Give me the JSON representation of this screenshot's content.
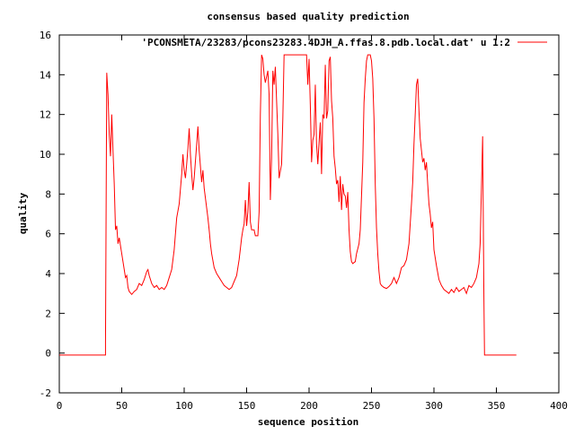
{
  "chart_data": {
    "type": "line",
    "title": "consensus based quality prediction",
    "xlabel": "sequence position",
    "ylabel": "quality",
    "xlim": [
      0,
      400
    ],
    "ylim": [
      -2,
      16
    ],
    "xticks": [
      0,
      50,
      100,
      150,
      200,
      250,
      300,
      350,
      400
    ],
    "yticks": [
      -2,
      0,
      2,
      4,
      6,
      8,
      10,
      12,
      14,
      16
    ],
    "grid": false,
    "legend_position": "top-right",
    "series": [
      {
        "name": "'PCONSMETA/23283/pcons23283.4DJH_A.ffas.8.pdb.local.dat' u 1:2",
        "color": "#ff0000",
        "points": [
          [
            0,
            -0.1
          ],
          [
            37,
            -0.1
          ],
          [
            37,
            0.5
          ],
          [
            38,
            14.1
          ],
          [
            39,
            13
          ],
          [
            40,
            11
          ],
          [
            41,
            9.9
          ],
          [
            42,
            12
          ],
          [
            43,
            10.2
          ],
          [
            44,
            8.5
          ],
          [
            45,
            6.2
          ],
          [
            46,
            6.4
          ],
          [
            47,
            5.5
          ],
          [
            48,
            5.8
          ],
          [
            50,
            5
          ],
          [
            52,
            4.2
          ],
          [
            53,
            3.8
          ],
          [
            54,
            3.9
          ],
          [
            55,
            3.3
          ],
          [
            56,
            3.1
          ],
          [
            58,
            2.95
          ],
          [
            60,
            3.1
          ],
          [
            62,
            3.2
          ],
          [
            64,
            3.5
          ],
          [
            66,
            3.4
          ],
          [
            68,
            3.7
          ],
          [
            70,
            4.1
          ],
          [
            71,
            4.2
          ],
          [
            72,
            3.9
          ],
          [
            74,
            3.5
          ],
          [
            76,
            3.3
          ],
          [
            78,
            3.4
          ],
          [
            80,
            3.2
          ],
          [
            82,
            3.3
          ],
          [
            84,
            3.2
          ],
          [
            86,
            3.4
          ],
          [
            88,
            3.8
          ],
          [
            90,
            4.2
          ],
          [
            92,
            5.2
          ],
          [
            94,
            6.8
          ],
          [
            96,
            7.5
          ],
          [
            98,
            9
          ],
          [
            99,
            10
          ],
          [
            100,
            9.2
          ],
          [
            101,
            8.8
          ],
          [
            102,
            9.5
          ],
          [
            103,
            10.3
          ],
          [
            104,
            11.3
          ],
          [
            105,
            10
          ],
          [
            106,
            9
          ],
          [
            107,
            8.2
          ],
          [
            108,
            8.8
          ],
          [
            110,
            10.5
          ],
          [
            111,
            11.4
          ],
          [
            112,
            10.2
          ],
          [
            113,
            9.4
          ],
          [
            114,
            8.6
          ],
          [
            115,
            9.2
          ],
          [
            116,
            8.3
          ],
          [
            118,
            7.3
          ],
          [
            119,
            6.8
          ],
          [
            120,
            6.2
          ],
          [
            121,
            5.5
          ],
          [
            122,
            5
          ],
          [
            124,
            4.3
          ],
          [
            126,
            4
          ],
          [
            128,
            3.8
          ],
          [
            130,
            3.6
          ],
          [
            132,
            3.4
          ],
          [
            134,
            3.3
          ],
          [
            136,
            3.2
          ],
          [
            138,
            3.3
          ],
          [
            140,
            3.6
          ],
          [
            142,
            3.9
          ],
          [
            144,
            4.7
          ],
          [
            146,
            5.8
          ],
          [
            147,
            6.2
          ],
          [
            148,
            6.5
          ],
          [
            149,
            7.7
          ],
          [
            150,
            6.4
          ],
          [
            151,
            7.1
          ],
          [
            152,
            8.6
          ],
          [
            153,
            6.6
          ],
          [
            154,
            6.2
          ],
          [
            156,
            6.2
          ],
          [
            157,
            5.9
          ],
          [
            159,
            5.9
          ],
          [
            160,
            7.1
          ],
          [
            161,
            12
          ],
          [
            162,
            15
          ],
          [
            163,
            14.8
          ],
          [
            164,
            14
          ],
          [
            165,
            13.6
          ],
          [
            167,
            14.2
          ],
          [
            168,
            13
          ],
          [
            169,
            7.7
          ],
          [
            170,
            9.8
          ],
          [
            171,
            14.2
          ],
          [
            172,
            13.5
          ],
          [
            173,
            14.4
          ],
          [
            175,
            11
          ],
          [
            176,
            8.8
          ],
          [
            178,
            9.5
          ],
          [
            179,
            11.8
          ],
          [
            180,
            15
          ],
          [
            192,
            15
          ],
          [
            198,
            15
          ],
          [
            199,
            13.5
          ],
          [
            200,
            14.8
          ],
          [
            201,
            12.5
          ],
          [
            202,
            9.6
          ],
          [
            203,
            10.7
          ],
          [
            204,
            11
          ],
          [
            205,
            13.5
          ],
          [
            206,
            10.5
          ],
          [
            207,
            9.5
          ],
          [
            208,
            10.6
          ],
          [
            209,
            11.6
          ],
          [
            210,
            9
          ],
          [
            211,
            12
          ],
          [
            212,
            11.8
          ],
          [
            213,
            14.5
          ],
          [
            214,
            11.8
          ],
          [
            215,
            12.2
          ],
          [
            216,
            14.7
          ],
          [
            217,
            14.9
          ],
          [
            218,
            12.7
          ],
          [
            219,
            11.8
          ],
          [
            220,
            9.9
          ],
          [
            221,
            9.3
          ],
          [
            222,
            8.5
          ],
          [
            223,
            8.7
          ],
          [
            224,
            7.6
          ],
          [
            225,
            8.9
          ],
          [
            226,
            7.2
          ],
          [
            227,
            8.5
          ],
          [
            228,
            8
          ],
          [
            229,
            7.9
          ],
          [
            230,
            7.3
          ],
          [
            231,
            8.1
          ],
          [
            232,
            6.2
          ],
          [
            233,
            5.1
          ],
          [
            234,
            4.6
          ],
          [
            235,
            4.5
          ],
          [
            237,
            4.6
          ],
          [
            238,
            5
          ],
          [
            240,
            5.5
          ],
          [
            241,
            6.2
          ],
          [
            242,
            7.9
          ],
          [
            243,
            9.6
          ],
          [
            244,
            12.6
          ],
          [
            245,
            13.8
          ],
          [
            246,
            14.7
          ],
          [
            247,
            15
          ],
          [
            249,
            15
          ],
          [
            250,
            14.7
          ],
          [
            251,
            13.8
          ],
          [
            252,
            11.8
          ],
          [
            253,
            8.5
          ],
          [
            254,
            6.3
          ],
          [
            255,
            5
          ],
          [
            256,
            4.1
          ],
          [
            257,
            3.5
          ],
          [
            258,
            3.4
          ],
          [
            260,
            3.3
          ],
          [
            262,
            3.25
          ],
          [
            264,
            3.35
          ],
          [
            266,
            3.5
          ],
          [
            268,
            3.8
          ],
          [
            270,
            3.5
          ],
          [
            272,
            3.8
          ],
          [
            274,
            4.3
          ],
          [
            276,
            4.4
          ],
          [
            278,
            4.7
          ],
          [
            280,
            5.5
          ],
          [
            281,
            6.5
          ],
          [
            282,
            7.5
          ],
          [
            283,
            8.6
          ],
          [
            284,
            10.5
          ],
          [
            285,
            12
          ],
          [
            286,
            13.5
          ],
          [
            287,
            13.8
          ],
          [
            288,
            12.2
          ],
          [
            289,
            10.8
          ],
          [
            290,
            10.2
          ],
          [
            291,
            9.6
          ],
          [
            292,
            9.8
          ],
          [
            293,
            9.2
          ],
          [
            294,
            9.6
          ],
          [
            295,
            8.5
          ],
          [
            296,
            7.5
          ],
          [
            297,
            7
          ],
          [
            298,
            6.3
          ],
          [
            299,
            6.6
          ],
          [
            300,
            5.2
          ],
          [
            302,
            4.4
          ],
          [
            304,
            3.7
          ],
          [
            306,
            3.4
          ],
          [
            308,
            3.2
          ],
          [
            310,
            3.1
          ],
          [
            312,
            3
          ],
          [
            314,
            3.2
          ],
          [
            316,
            3.05
          ],
          [
            318,
            3.3
          ],
          [
            320,
            3.1
          ],
          [
            322,
            3.2
          ],
          [
            324,
            3.3
          ],
          [
            326,
            3
          ],
          [
            328,
            3.4
          ],
          [
            330,
            3.3
          ],
          [
            332,
            3.5
          ],
          [
            334,
            3.8
          ],
          [
            336,
            4.5
          ],
          [
            337,
            5.5
          ],
          [
            338,
            8.2
          ],
          [
            339,
            10.9
          ],
          [
            340,
            2.8
          ],
          [
            340.5,
            -0.1
          ],
          [
            366,
            -0.1
          ]
        ]
      }
    ]
  }
}
